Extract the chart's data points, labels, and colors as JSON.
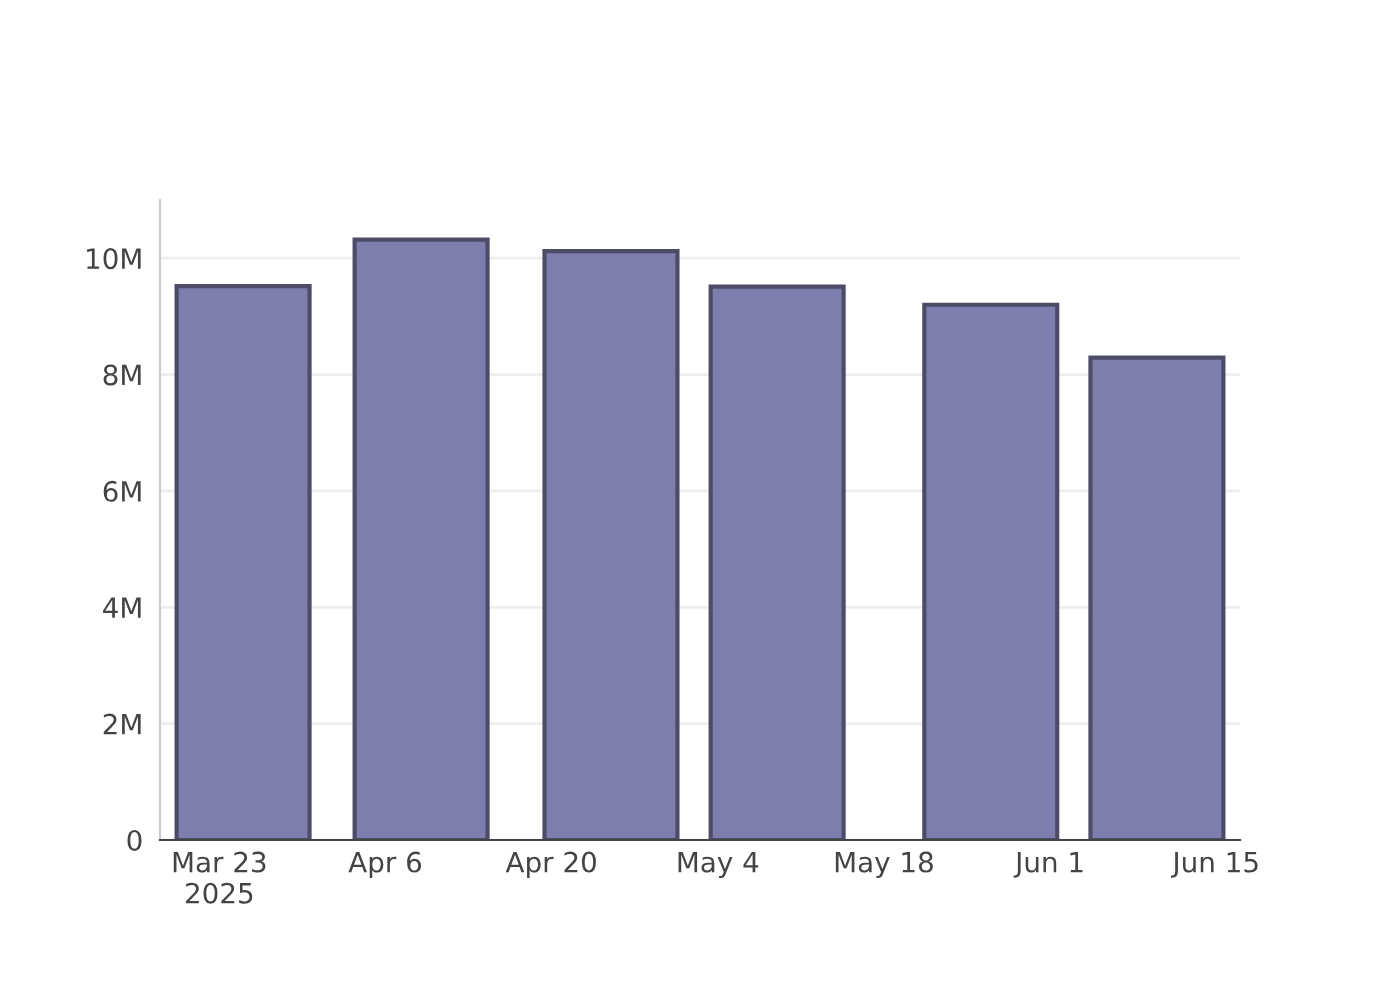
{
  "chart_data": {
    "type": "bar",
    "x": [
      "2025-03-25",
      "2025-04-09",
      "2025-04-25",
      "2025-05-09",
      "2025-05-27",
      "2025-06-10"
    ],
    "values": [
      9520000,
      10320000,
      10120000,
      9510000,
      9200000,
      8290000
    ],
    "color": "#7e7eae",
    "xlim": [
      "2025-03-18",
      "2025-06-17"
    ],
    "xticks": [
      {
        "value": "2025-03-23",
        "label": "Mar 23\n2025"
      },
      {
        "value": "2025-04-06",
        "label": "Apr 6"
      },
      {
        "value": "2025-04-20",
        "label": "Apr 20"
      },
      {
        "value": "2025-05-04",
        "label": "May 4"
      },
      {
        "value": "2025-05-18",
        "label": "May 18"
      },
      {
        "value": "2025-06-01",
        "label": "Jun 1"
      },
      {
        "value": "2025-06-15",
        "label": "Jun 15"
      }
    ],
    "ylim": [
      0,
      11000000
    ],
    "yticks": [
      {
        "value": 0,
        "label": "0"
      },
      {
        "value": 2000000,
        "label": "2M"
      },
      {
        "value": 4000000,
        "label": "4M"
      },
      {
        "value": 6000000,
        "label": "6M"
      },
      {
        "value": 8000000,
        "label": "8M"
      },
      {
        "value": 10000000,
        "label": "10M"
      }
    ],
    "grid": "y"
  }
}
